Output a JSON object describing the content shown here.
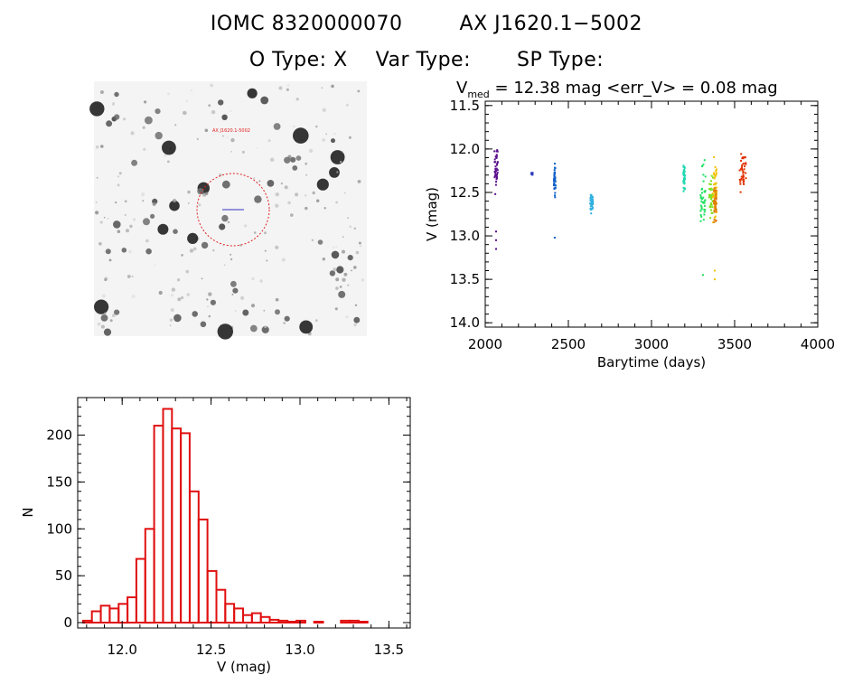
{
  "header": {
    "id_label": "IOMC 8320000070",
    "source_label": "AX J1620.1−5002",
    "o_type": "O Type: X",
    "var_type": "Var Type:",
    "sp_type": "SP Type:"
  },
  "image_panel": {
    "marker_label": "AX J1620.1-5002"
  },
  "chart_data": [
    {
      "type": "scatter",
      "title_prefix": "V",
      "title_sub": "med",
      "title_rest": " = 12.38 mag <err_V> = 0.08 mag",
      "xlabel": "Barytime (days)",
      "ylabel": "V (mag)",
      "xlim": [
        2000,
        4000
      ],
      "ylim": [
        14.05,
        11.45
      ],
      "y_inverted": true,
      "x_ticks": [
        "2000",
        "2500",
        "3000",
        "3500",
        "4000"
      ],
      "y_ticks": [
        "11.5",
        "12.0",
        "12.5",
        "13.0",
        "13.5",
        "14.0"
      ],
      "groups": [
        {
          "color": "#5a0f8c",
          "x": [
            2055,
            2075
          ],
          "y_range": [
            11.8,
            12.6
          ],
          "outliers": [
            12.95,
            13.05,
            13.15
          ]
        },
        {
          "color": "#3040c0",
          "x": [
            2278,
            2285
          ],
          "y_range": [
            12.27,
            12.3
          ],
          "outliers": []
        },
        {
          "color": "#1060c8",
          "x": [
            2413,
            2423
          ],
          "y_range": [
            12.05,
            12.68
          ],
          "outliers": [
            13.02
          ]
        },
        {
          "color": "#30b0e0",
          "x": [
            2632,
            2648
          ],
          "y_range": [
            12.45,
            12.78
          ],
          "outliers": []
        },
        {
          "color": "#20d8b0",
          "x": [
            3192,
            3202
          ],
          "y_range": [
            12.1,
            12.55
          ],
          "outliers": []
        },
        {
          "color": "#20e060",
          "x": [
            3295,
            3325
          ],
          "y_range": [
            12.05,
            13.0
          ],
          "outliers": [
            13.45
          ]
        },
        {
          "color": "#80e020",
          "x": [
            3345,
            3370
          ],
          "y_range": [
            12.2,
            12.9
          ],
          "outliers": []
        },
        {
          "color": "#f0c000",
          "x": [
            3368,
            3392
          ],
          "y_range": [
            11.9,
            13.0
          ],
          "outliers": [
            13.4,
            13.5
          ]
        },
        {
          "color": "#e07a00",
          "x": [
            3375,
            3390
          ],
          "y_range": [
            12.3,
            12.9
          ],
          "outliers": []
        },
        {
          "color": "#e03000",
          "x": [
            3528,
            3568
          ],
          "y_range": [
            11.95,
            12.58
          ],
          "outliers": []
        }
      ]
    },
    {
      "type": "bar",
      "histogram": true,
      "xlabel": "V (mag)",
      "ylabel": "N",
      "xlim": [
        11.75,
        13.62
      ],
      "ylim": [
        0,
        240
      ],
      "x_ticks": [
        "12.0",
        "12.5",
        "13.0",
        "13.5"
      ],
      "y_ticks": [
        "0",
        "50",
        "100",
        "150",
        "200"
      ],
      "bin_start": 11.78,
      "bin_width": 0.05,
      "values": [
        2,
        12,
        18,
        15,
        20,
        27,
        68,
        100,
        210,
        228,
        207,
        202,
        140,
        110,
        55,
        35,
        20,
        15,
        8,
        10,
        6,
        3,
        2,
        1,
        2,
        0,
        1,
        0,
        0,
        2,
        2,
        1,
        0
      ]
    }
  ]
}
